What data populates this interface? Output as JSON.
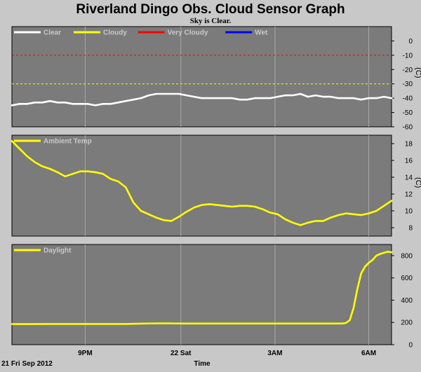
{
  "chart_data": {
    "title": "Riverland Dingo Obs. Cloud Sensor Graph",
    "subtitle": "Sky is Clear.",
    "date_label": "21 Fri Sep 2012",
    "xlabel": "Time",
    "x_ticks": [
      "9PM",
      "22 Sat",
      "3AM",
      "6AM"
    ],
    "panels": [
      {
        "type": "line",
        "ylim": [
          -60,
          10
        ],
        "y_ticks": [
          0,
          -10,
          -20,
          -30,
          -40,
          -50,
          -60
        ],
        "unit": "(C)",
        "legend": [
          {
            "name": "Clear",
            "color": "#ffffff"
          },
          {
            "name": "Cloudy",
            "color": "#ffff00"
          },
          {
            "name": "Very Cloudy",
            "color": "#ff0000"
          },
          {
            "name": "Wet",
            "color": "#0000ff"
          }
        ],
        "reference_lines": [
          {
            "y": -10,
            "color": "#ff0000",
            "style": "dashed"
          },
          {
            "y": -30,
            "color": "#ffff00",
            "style": "dashed"
          }
        ],
        "series": [
          {
            "name": "Clear",
            "color": "#ffffff",
            "x": [
              0,
              2,
              4,
              6,
              8,
              10,
              12,
              14,
              16,
              18,
              20,
              22,
              24,
              26,
              28,
              30,
              32,
              34,
              36,
              38,
              40,
              42,
              44,
              46,
              48,
              50,
              52,
              54,
              56,
              58,
              60,
              62,
              64,
              66,
              68,
              70,
              72,
              74,
              76,
              78,
              80,
              82,
              84,
              86,
              88,
              90,
              92,
              94,
              96,
              98,
              100
            ],
            "y": [
              -45,
              -44,
              -44,
              -43,
              -43,
              -42,
              -43,
              -43,
              -44,
              -44,
              -44,
              -45,
              -44,
              -44,
              -43,
              -42,
              -41,
              -40,
              -38,
              -37,
              -37,
              -37,
              -37,
              -38,
              -39,
              -40,
              -40,
              -40,
              -40,
              -40,
              -41,
              -41,
              -40,
              -40,
              -40,
              -39,
              -38,
              -38,
              -37,
              -39,
              -38,
              -39,
              -39,
              -40,
              -40,
              -40,
              -41,
              -40,
              -40,
              -39,
              -40
            ]
          }
        ]
      },
      {
        "type": "line",
        "ylim": [
          7,
          19
        ],
        "y_ticks": [
          18,
          16,
          14,
          12,
          10,
          8
        ],
        "unit": "(C)",
        "legend": [
          {
            "name": "Ambient Temp",
            "color": "#ffff00"
          }
        ],
        "series": [
          {
            "name": "Ambient Temp",
            "color": "#ffff00",
            "x": [
              0,
              2,
              4,
              6,
              8,
              10,
              12,
              14,
              16,
              18,
              20,
              22,
              24,
              26,
              28,
              30,
              32,
              34,
              36,
              38,
              40,
              42,
              44,
              46,
              48,
              50,
              52,
              54,
              56,
              58,
              60,
              62,
              64,
              66,
              68,
              70,
              72,
              74,
              76,
              78,
              80,
              82,
              84,
              86,
              88,
              90,
              92,
              94,
              96,
              98,
              100
            ],
            "y": [
              18.3,
              17.4,
              16.5,
              15.8,
              15.3,
              15.0,
              14.6,
              14.1,
              14.4,
              14.7,
              14.7,
              14.6,
              14.4,
              13.8,
              13.5,
              12.8,
              11.0,
              10.0,
              9.6,
              9.2,
              8.9,
              8.8,
              9.3,
              9.9,
              10.4,
              10.7,
              10.8,
              10.7,
              10.6,
              10.5,
              10.6,
              10.6,
              10.5,
              10.2,
              9.8,
              9.6,
              9.0,
              8.6,
              8.3,
              8.6,
              8.8,
              8.8,
              9.2,
              9.5,
              9.7,
              9.6,
              9.5,
              9.7,
              10.0,
              10.6,
              11.2
            ]
          }
        ]
      },
      {
        "type": "line",
        "ylim": [
          0,
          900
        ],
        "y_ticks": [
          800,
          600,
          400,
          200,
          0
        ],
        "unit": "",
        "legend": [
          {
            "name": "Daylight",
            "color": "#ffff00"
          }
        ],
        "series": [
          {
            "name": "Daylight",
            "color": "#ffff00",
            "x": [
              0,
              5,
              10,
              15,
              20,
              25,
              30,
              35,
              40,
              45,
              50,
              55,
              60,
              65,
              70,
              75,
              80,
              85,
              87,
              88,
              89,
              90,
              91,
              92,
              93,
              94,
              95,
              96,
              97,
              98,
              99,
              100
            ],
            "y": [
              185,
              185,
              186,
              186,
              186,
              186,
              186,
              190,
              192,
              190,
              190,
              190,
              190,
              190,
              190,
              190,
              190,
              190,
              190,
              195,
              220,
              330,
              500,
              640,
              700,
              735,
              760,
              800,
              815,
              825,
              835,
              830
            ]
          }
        ]
      }
    ]
  }
}
